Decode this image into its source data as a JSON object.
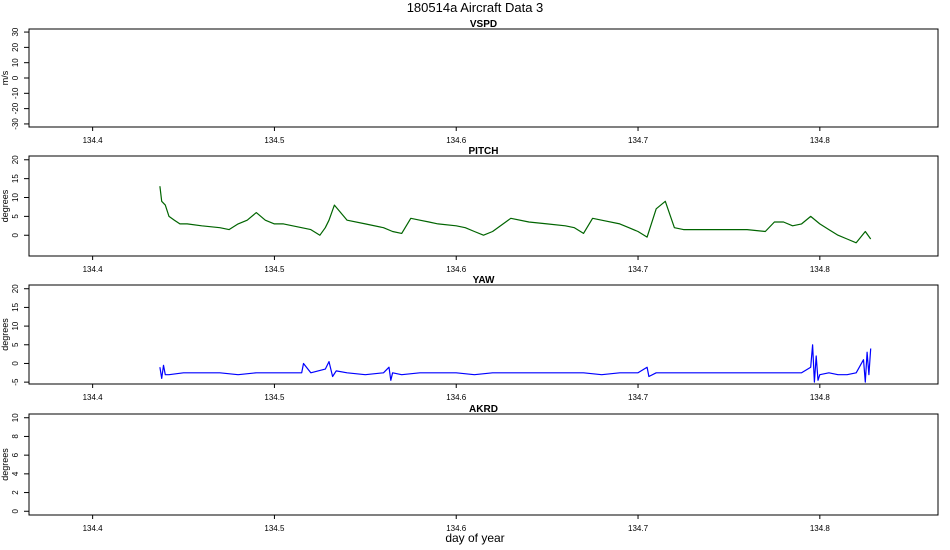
{
  "figure": {
    "title": "180514a   Aircraft Data 3",
    "xlabel": "day of year"
  },
  "chart_data": [
    {
      "type": "line",
      "title": "VSPD",
      "ylabel": "m/s",
      "xlim": [
        134.365,
        134.865
      ],
      "ylim": [
        -32,
        32
      ],
      "x_ticks": [
        134.4,
        134.5,
        134.6,
        134.7,
        134.8
      ],
      "y_ticks": [
        -30,
        -20,
        -10,
        0,
        10,
        20,
        30
      ],
      "color": "#000000",
      "series": []
    },
    {
      "type": "line",
      "title": "PITCH",
      "ylabel": "degrees",
      "xlim": [
        134.365,
        134.865
      ],
      "ylim": [
        -5.5,
        21
      ],
      "x_ticks": [
        134.4,
        134.5,
        134.6,
        134.7,
        134.8
      ],
      "y_ticks": [
        0,
        5,
        10,
        15,
        20
      ],
      "color": "#006400",
      "series": [
        {
          "x": [
            134.437,
            134.438,
            134.44,
            134.442,
            134.445,
            134.448,
            134.452,
            134.46,
            134.47,
            134.475,
            134.48,
            134.485,
            134.49,
            134.495,
            134.5,
            134.505,
            134.51,
            134.515,
            134.52,
            134.525,
            134.528,
            134.53,
            134.533,
            134.54,
            134.55,
            134.56,
            134.565,
            134.57,
            134.575,
            134.58,
            134.585,
            134.59,
            134.6,
            134.605,
            134.61,
            134.615,
            134.62,
            134.63,
            134.64,
            134.65,
            134.66,
            134.665,
            134.67,
            134.675,
            134.68,
            134.69,
            134.695,
            134.7,
            134.705,
            134.71,
            134.715,
            134.72,
            134.725,
            134.73,
            134.74,
            134.75,
            134.76,
            134.77,
            134.775,
            134.78,
            134.785,
            134.79,
            134.795,
            134.8,
            134.805,
            134.81,
            134.815,
            134.82,
            134.825,
            134.828
          ],
          "y": [
            13,
            9,
            8,
            5,
            4,
            3,
            3,
            2.5,
            2,
            1.5,
            3,
            4,
            6,
            4,
            3,
            3,
            2.5,
            2,
            1.5,
            0,
            2,
            4,
            8,
            4,
            3,
            2,
            1,
            0.5,
            4.5,
            4,
            3.5,
            3,
            2.5,
            2,
            1,
            0,
            1,
            4.5,
            3.5,
            3,
            2.5,
            2,
            0.5,
            4.5,
            4,
            3,
            2,
            1,
            -0.5,
            7,
            9,
            2,
            1.5,
            1.5,
            1.5,
            1.5,
            1.5,
            1,
            3.5,
            3.5,
            2.5,
            3,
            5,
            3,
            1.5,
            0,
            -1,
            -2,
            1,
            -1
          ]
        }
      ]
    },
    {
      "type": "line",
      "title": "YAW",
      "ylabel": "degrees",
      "xlim": [
        134.365,
        134.865
      ],
      "ylim": [
        -5.5,
        21
      ],
      "x_ticks": [
        134.4,
        134.5,
        134.6,
        134.7,
        134.8
      ],
      "y_ticks": [
        -5,
        0,
        5,
        10,
        15,
        20
      ],
      "color": "#0000ff",
      "series": [
        {
          "x": [
            134.437,
            134.438,
            134.439,
            134.44,
            134.442,
            134.45,
            134.46,
            134.47,
            134.48,
            134.49,
            134.5,
            134.51,
            134.515,
            134.516,
            134.52,
            134.528,
            134.53,
            134.532,
            134.534,
            134.54,
            134.55,
            134.56,
            134.563,
            134.564,
            134.565,
            134.57,
            134.58,
            134.59,
            134.6,
            134.61,
            134.62,
            134.63,
            134.64,
            134.65,
            134.66,
            134.67,
            134.68,
            134.69,
            134.7,
            134.705,
            134.706,
            134.71,
            134.72,
            134.73,
            134.74,
            134.75,
            134.76,
            134.77,
            134.78,
            134.79,
            134.795,
            134.796,
            134.797,
            134.798,
            134.799,
            134.8,
            134.805,
            134.81,
            134.815,
            134.82,
            134.824,
            134.825,
            134.826,
            134.827,
            134.828
          ],
          "y": [
            -1,
            -4,
            -0.5,
            -3,
            -3,
            -2.5,
            -2.5,
            -2.5,
            -3,
            -2.5,
            -2.5,
            -2.5,
            -2.5,
            0,
            -2.5,
            -1.5,
            0.5,
            -3.5,
            -2,
            -2.5,
            -3,
            -2.5,
            -1,
            -4.5,
            -2.5,
            -3,
            -2.5,
            -2.5,
            -2.5,
            -3,
            -2.5,
            -2.5,
            -2.5,
            -2.5,
            -2.5,
            -2.5,
            -3,
            -2.5,
            -2.5,
            -1,
            -3.5,
            -2.5,
            -2.5,
            -2.5,
            -2.5,
            -2.5,
            -2.5,
            -2.5,
            -2.5,
            -2.5,
            -1,
            5,
            -5,
            2,
            -4.5,
            -3,
            -2.5,
            -3,
            -3,
            -2.5,
            1,
            -5,
            3,
            -3,
            4
          ]
        }
      ]
    },
    {
      "type": "line",
      "title": "AKRD",
      "ylabel": "degrees",
      "xlim": [
        134.365,
        134.865
      ],
      "ylim": [
        -0.4,
        10.4
      ],
      "x_ticks": [
        134.4,
        134.5,
        134.6,
        134.7,
        134.8
      ],
      "y_ticks": [
        0,
        2,
        4,
        6,
        8,
        10
      ],
      "color": "#000000",
      "series": []
    }
  ]
}
